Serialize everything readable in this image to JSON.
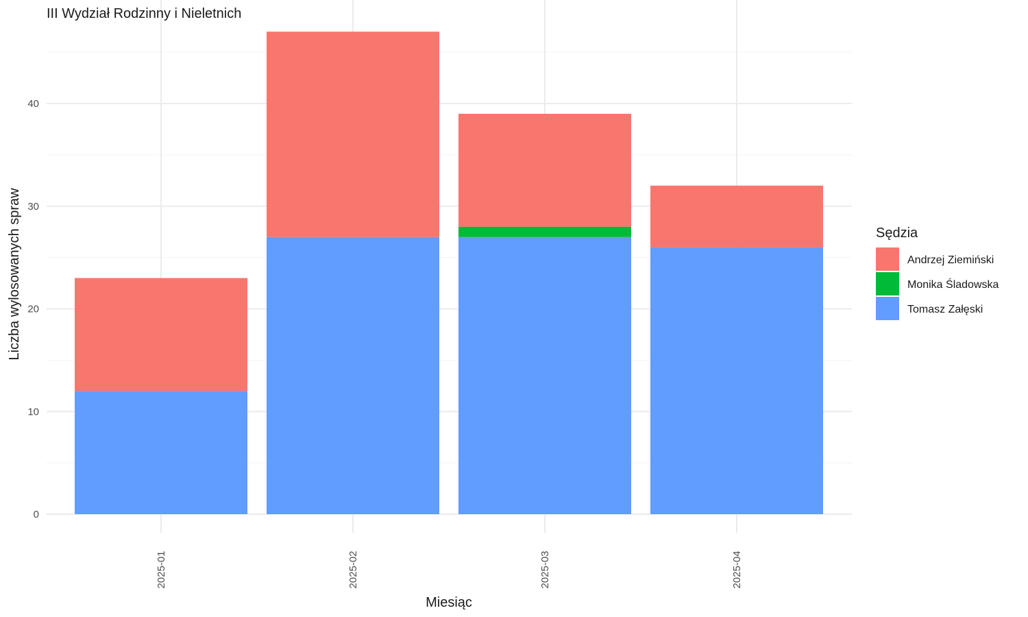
{
  "chart_data": {
    "type": "bar",
    "stacked": true,
    "title": "III Wydział Rodzinny i Nieletnich",
    "xlabel": "Miesiąc",
    "ylabel": "Liczba wylosowanych spraw",
    "categories": [
      "2025-01",
      "2025-02",
      "2025-03",
      "2025-04"
    ],
    "ylim": [
      0,
      49
    ],
    "yticks": [
      0,
      10,
      20,
      30,
      40
    ],
    "grid": true,
    "legend": {
      "title": "Sędzia",
      "position": "right"
    },
    "stack_order": [
      "Tomasz Załęski",
      "Monika Śladowska",
      "Andrzej Ziemiński"
    ],
    "series": [
      {
        "name": "Andrzej Ziemiński",
        "color": "#F8766D",
        "values": [
          11,
          20,
          11,
          6
        ]
      },
      {
        "name": "Monika Śladowska",
        "color": "#00BA38",
        "values": [
          0,
          0,
          1,
          0
        ]
      },
      {
        "name": "Tomasz Załęski",
        "color": "#619CFF",
        "values": [
          12,
          27,
          27,
          26
        ]
      }
    ]
  }
}
